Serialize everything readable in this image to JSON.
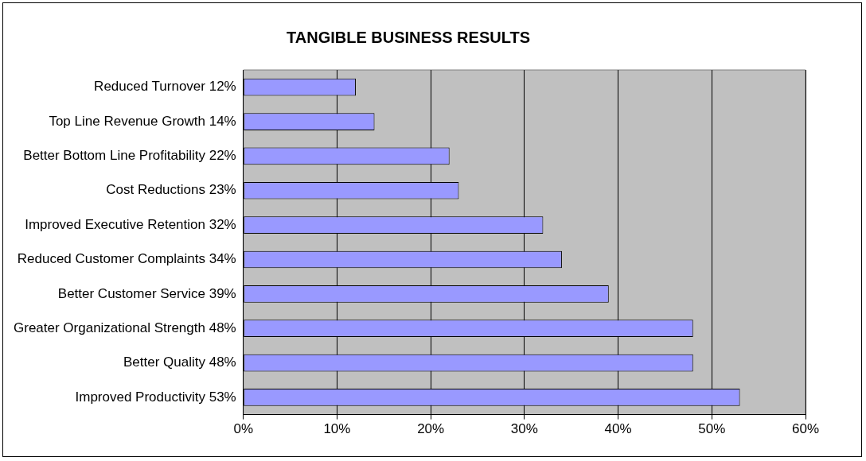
{
  "chart_data": {
    "type": "bar",
    "orientation": "horizontal",
    "title": "TANGIBLE BUSINESS RESULTS",
    "categories": [
      "Reduced Turnover 12%",
      "Top Line Revenue Growth 14%",
      "Better Bottom Line Profitability 22%",
      "Cost Reductions 23%",
      "Improved Executive Retention 32%",
      "Reduced Customer Complaints 34%",
      "Better Customer Service 39%",
      "Greater Organizational Strength 48%",
      "Better Quality 48%",
      "Improved Productivity 53%"
    ],
    "values": [
      12,
      14,
      22,
      23,
      32,
      34,
      39,
      48,
      48,
      53
    ],
    "color": "#9999ff",
    "xlim": [
      0,
      60
    ],
    "xticks": [
      {
        "value": 0,
        "label": "0%"
      },
      {
        "value": 10,
        "label": "10%"
      },
      {
        "value": 20,
        "label": "20%"
      },
      {
        "value": 30,
        "label": "30%"
      },
      {
        "value": 40,
        "label": "40%"
      },
      {
        "value": 50,
        "label": "50%"
      },
      {
        "value": 60,
        "label": "60%"
      }
    ],
    "grid": "x"
  }
}
